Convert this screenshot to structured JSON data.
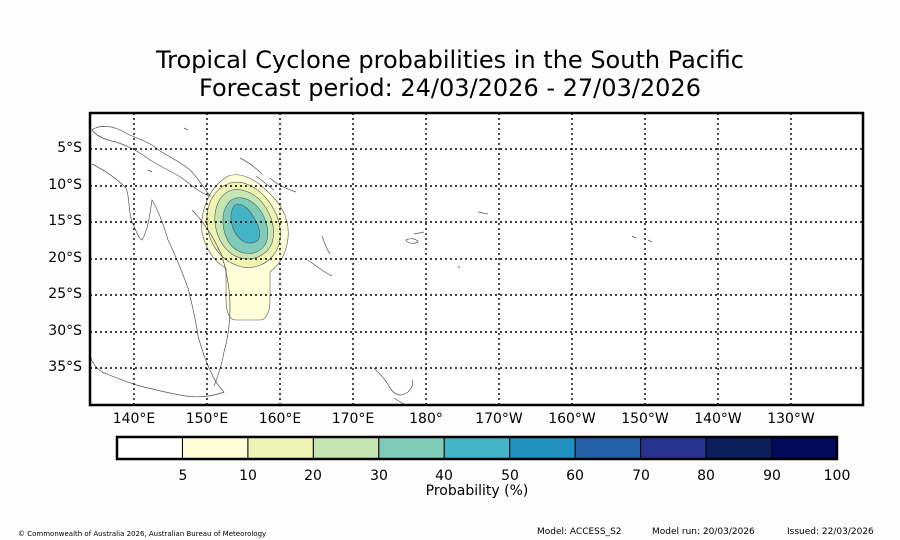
{
  "title": {
    "line1": "Tropical Cyclone probabilities in the South Pacific",
    "line2": "Forecast period: 24/03/2026 - 27/03/2026"
  },
  "latitude_labels": [
    "5°S",
    "10°S",
    "15°S",
    "20°S",
    "25°S",
    "30°S",
    "35°S"
  ],
  "longitude_labels": [
    "140°E",
    "150°E",
    "160°E",
    "170°E",
    "180°",
    "170°W",
    "160°W",
    "150°W",
    "140°W",
    "130°W"
  ],
  "colorbar": {
    "title": "Probability (%)",
    "ticks": [
      "5",
      "10",
      "20",
      "30",
      "40",
      "50",
      "60",
      "70",
      "80",
      "90",
      "100"
    ],
    "colors": [
      "#ffffff",
      "#fefed8",
      "#eef4b4",
      "#c6e6b4",
      "#7ecbba",
      "#42b4c6",
      "#2090c0",
      "#2360a8",
      "#26328e",
      "#0c1f5a",
      "#05095a"
    ]
  },
  "probability_region": {
    "approx_center": {
      "lat_deg_s": 15.5,
      "lon_deg_e": 156
    },
    "max_level_percent": 50
  },
  "footer": {
    "copyright": "© Commonwealth of Australia 2026, Australian Bureau of Meteorology",
    "model": "Model: ACCESS_S2",
    "model_run": "Model run: 20/03/2026",
    "issued": "Issued: 22/03/2026"
  }
}
